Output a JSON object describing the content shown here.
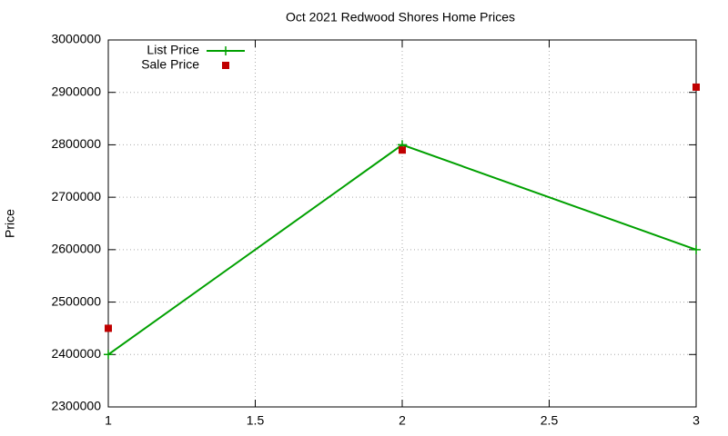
{
  "chart_data": {
    "type": "line",
    "title": "Oct 2021 Redwood Shores Home Prices",
    "y_label": "Price",
    "x": [
      1,
      2,
      3
    ],
    "series": [
      {
        "name": "List Price",
        "color": "#00a000",
        "style": "linespoints",
        "marker": "plus",
        "values": [
          2400000,
          2800000,
          2600000
        ]
      },
      {
        "name": "Sale Price",
        "color": "#c00000",
        "style": "points",
        "marker": "square",
        "values": [
          2450000,
          2790000,
          2910000
        ]
      }
    ],
    "xlim": [
      1,
      3
    ],
    "xticks": [
      1,
      1.5,
      2,
      2.5,
      3
    ],
    "ylim": [
      2300000,
      3000000
    ],
    "yticks": [
      2300000,
      2400000,
      2500000,
      2600000,
      2700000,
      2800000,
      2900000,
      3000000
    ],
    "grid": true,
    "legend": "top-left"
  }
}
